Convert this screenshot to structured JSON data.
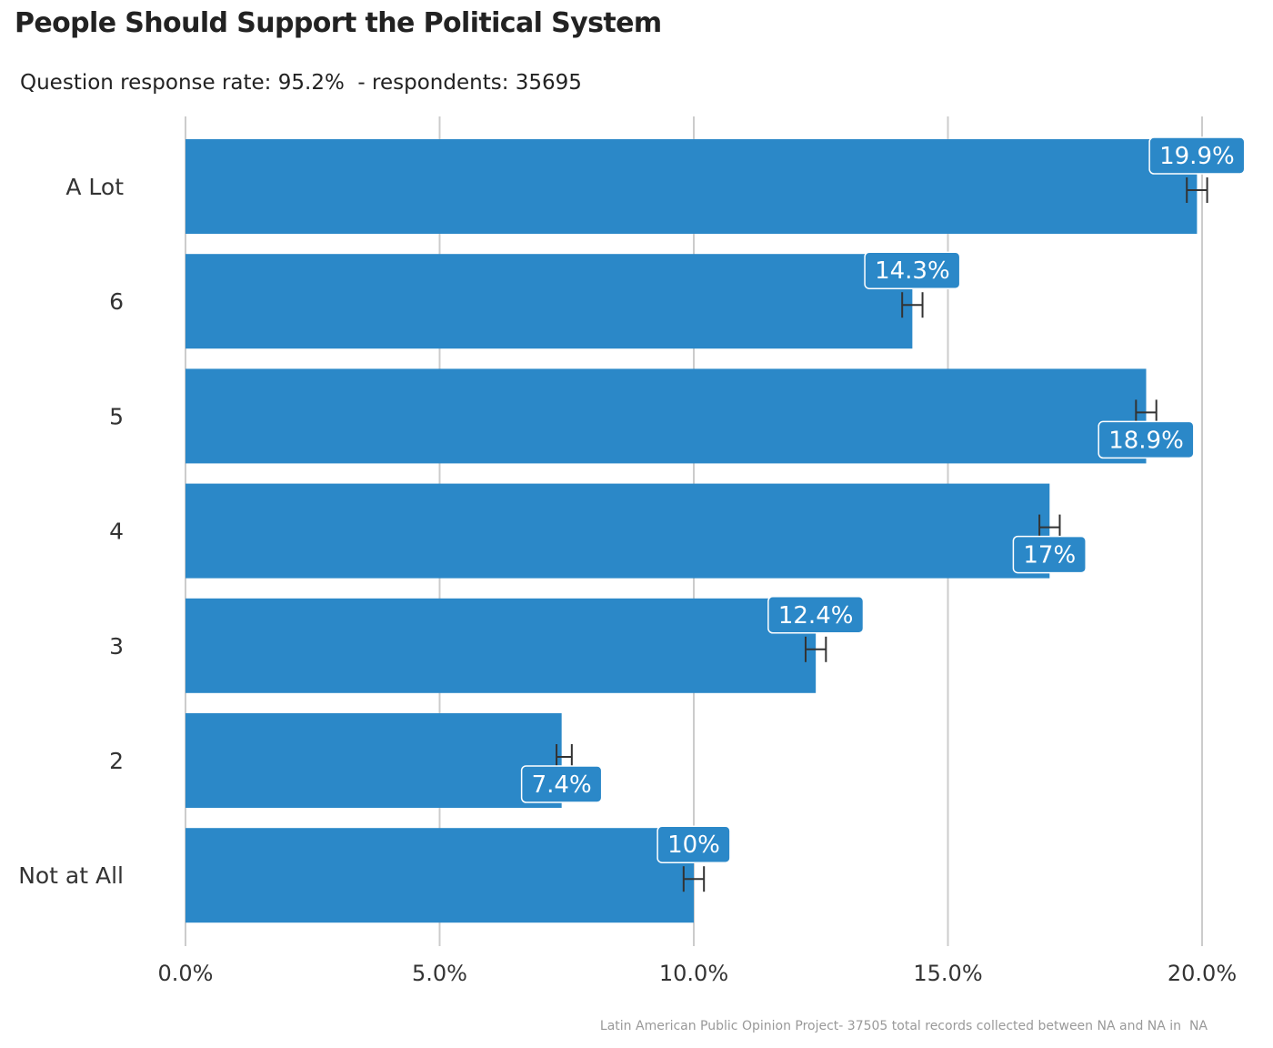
{
  "title": "People Should Support the Political System",
  "subtitle": "Question response rate: 95.2%  - respondents: 35695",
  "caption": "Latin American Public Opinion Project- 37505 total records collected between NA and NA in  NA",
  "colors": {
    "bar": "#2b88c8",
    "grid": "#cccccc",
    "error_bar": "#333333",
    "label_border": "#ffffff"
  },
  "chart_data": {
    "type": "bar",
    "orientation": "horizontal",
    "categories": [
      "A Lot",
      "6",
      "5",
      "4",
      "3",
      "2",
      "Not at All"
    ],
    "values": [
      19.9,
      14.3,
      18.9,
      17.0,
      12.4,
      7.4,
      10.0
    ],
    "data_labels": [
      "19.9%",
      "14.3%",
      "18.9%",
      "17%",
      "12.4%",
      "7.4%",
      "10%"
    ],
    "data_label_placement": [
      "above",
      "above",
      "below",
      "below",
      "above",
      "below",
      "above"
    ],
    "error_bars": [
      [
        19.7,
        20.1
      ],
      [
        14.1,
        14.5
      ],
      [
        18.7,
        19.1
      ],
      [
        16.8,
        17.2
      ],
      [
        12.2,
        12.6
      ],
      [
        7.3,
        7.6
      ],
      [
        9.8,
        10.2
      ]
    ],
    "x_ticks": [
      0,
      5,
      10,
      15,
      20
    ],
    "x_tick_labels": [
      "0.0%",
      "5.0%",
      "10.0%",
      "15.0%",
      "20.0%"
    ],
    "xlim": [
      0,
      20
    ],
    "xlabel": "",
    "ylabel": "",
    "grid": "vertical major",
    "legend": "none"
  }
}
